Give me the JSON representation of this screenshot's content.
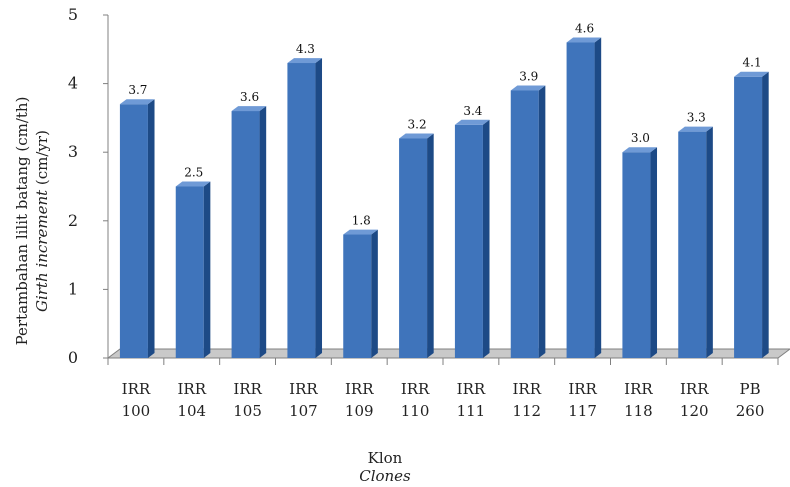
{
  "chart_data": {
    "type": "bar",
    "categories": [
      [
        "IRR",
        "100"
      ],
      [
        "IRR",
        "104"
      ],
      [
        "IRR",
        "105"
      ],
      [
        "IRR",
        "107"
      ],
      [
        "IRR",
        "109"
      ],
      [
        "IRR",
        "110"
      ],
      [
        "IRR",
        "111"
      ],
      [
        "IRR",
        "112"
      ],
      [
        "IRR",
        "117"
      ],
      [
        "IRR",
        "118"
      ],
      [
        "IRR",
        "120"
      ],
      [
        "PB",
        "260"
      ]
    ],
    "values": [
      3.7,
      2.5,
      3.6,
      4.3,
      1.8,
      3.2,
      3.4,
      3.9,
      4.6,
      3.0,
      3.3,
      4.1
    ],
    "data_labels": [
      "3.7",
      "2.5",
      "3.6",
      "4.3",
      "1.8",
      "3.2",
      "3.4",
      "3.9",
      "4.6",
      "3.0",
      "3.3",
      "4.1"
    ],
    "ylabel_line1": "Pertambahan lilit batang (cm/th)",
    "ylabel_line2_italic": "Girth increment",
    "ylabel_line2_rest": " (cm/yr)",
    "xlabel": "Klon",
    "xlabel_italic": "Clones",
    "ylim": [
      0,
      5
    ],
    "yticks": [
      "0",
      "1",
      "2",
      "3",
      "4",
      "5"
    ],
    "grid": false,
    "style": "3d-bar",
    "colors": {
      "bar_front": "#3f74bb",
      "bar_side": "#1d4a86",
      "bar_top": "#6f9ad6",
      "floor": "#c9c9c9",
      "axis": "#808080"
    }
  }
}
